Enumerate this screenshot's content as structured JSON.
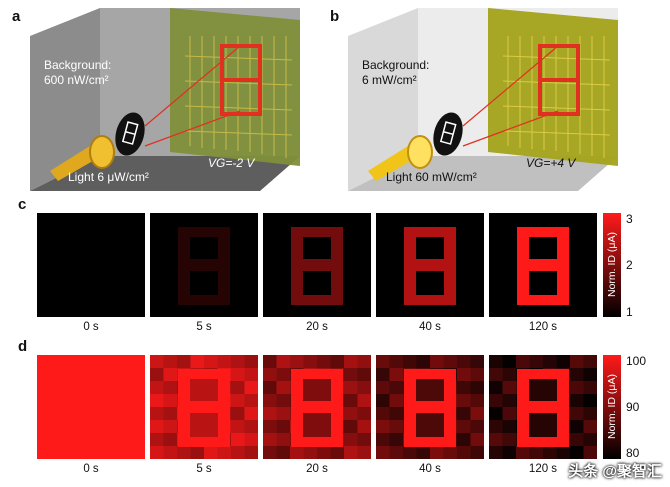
{
  "panel_a": {
    "letter": "a",
    "background_label": "Background:",
    "background_value": "600 nW/cm²",
    "light_label": "Light 6 μW/cm²",
    "gate_voltage": "VG=-2 V"
  },
  "panel_b": {
    "letter": "b",
    "background_label": "Background:",
    "background_value": "6 mW/cm²",
    "light_label": "Light 60 mW/cm²",
    "gate_voltage": "VG=+4 V"
  },
  "panel_c": {
    "letter": "c",
    "times": [
      "0 s",
      "5 s",
      "20 s",
      "40 s",
      "120 s"
    ],
    "pattern_intensity": [
      0,
      0.15,
      0.45,
      0.7,
      1.0
    ],
    "background_intensity": [
      0,
      0,
      0,
      0,
      0
    ],
    "colorbar": {
      "title": "Norm. ID (μA)",
      "ticks": [
        "3",
        "2",
        "1"
      ]
    }
  },
  "panel_d": {
    "letter": "d",
    "times": [
      "0 s",
      "5 s",
      "20 s",
      "40 s",
      "120 s"
    ],
    "pattern_intensity": [
      1.0,
      1.0,
      1.0,
      1.0,
      1.0
    ],
    "background_intensity": [
      1.0,
      0.78,
      0.55,
      0.35,
      0.2
    ],
    "colorbar": {
      "title": "Norm. ID (μA)",
      "ticks": [
        "100",
        "90",
        "80"
      ]
    }
  },
  "watermark": "头条 @聚智汇",
  "colors": {
    "red": "#ff1a1a",
    "dark_red": "#3a0000",
    "black": "#000000",
    "leaf_green": "#8a9a2a"
  }
}
